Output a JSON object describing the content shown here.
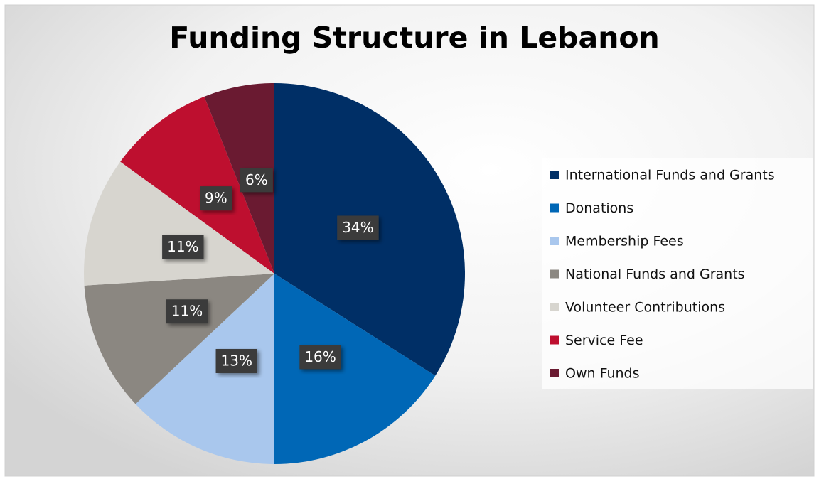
{
  "chart_data": {
    "type": "pie",
    "title": "Funding Structure in Lebanon",
    "categories": [
      "International Funds and Grants",
      "Donations",
      "Membership Fees",
      "National Funds and Grants",
      "Volunteer Contributions",
      "Service Fee",
      "Own Funds"
    ],
    "values": [
      34,
      16,
      13,
      11,
      11,
      9,
      6
    ],
    "value_labels": [
      "34%",
      "16%",
      "13%",
      "11%",
      "11%",
      "9%",
      "6%"
    ],
    "colors": [
      "#002f66",
      "#0067b6",
      "#a9c7ed",
      "#8b8781",
      "#d7d5cf",
      "#be0f2f",
      "#6a1a31"
    ],
    "legend": "right"
  }
}
